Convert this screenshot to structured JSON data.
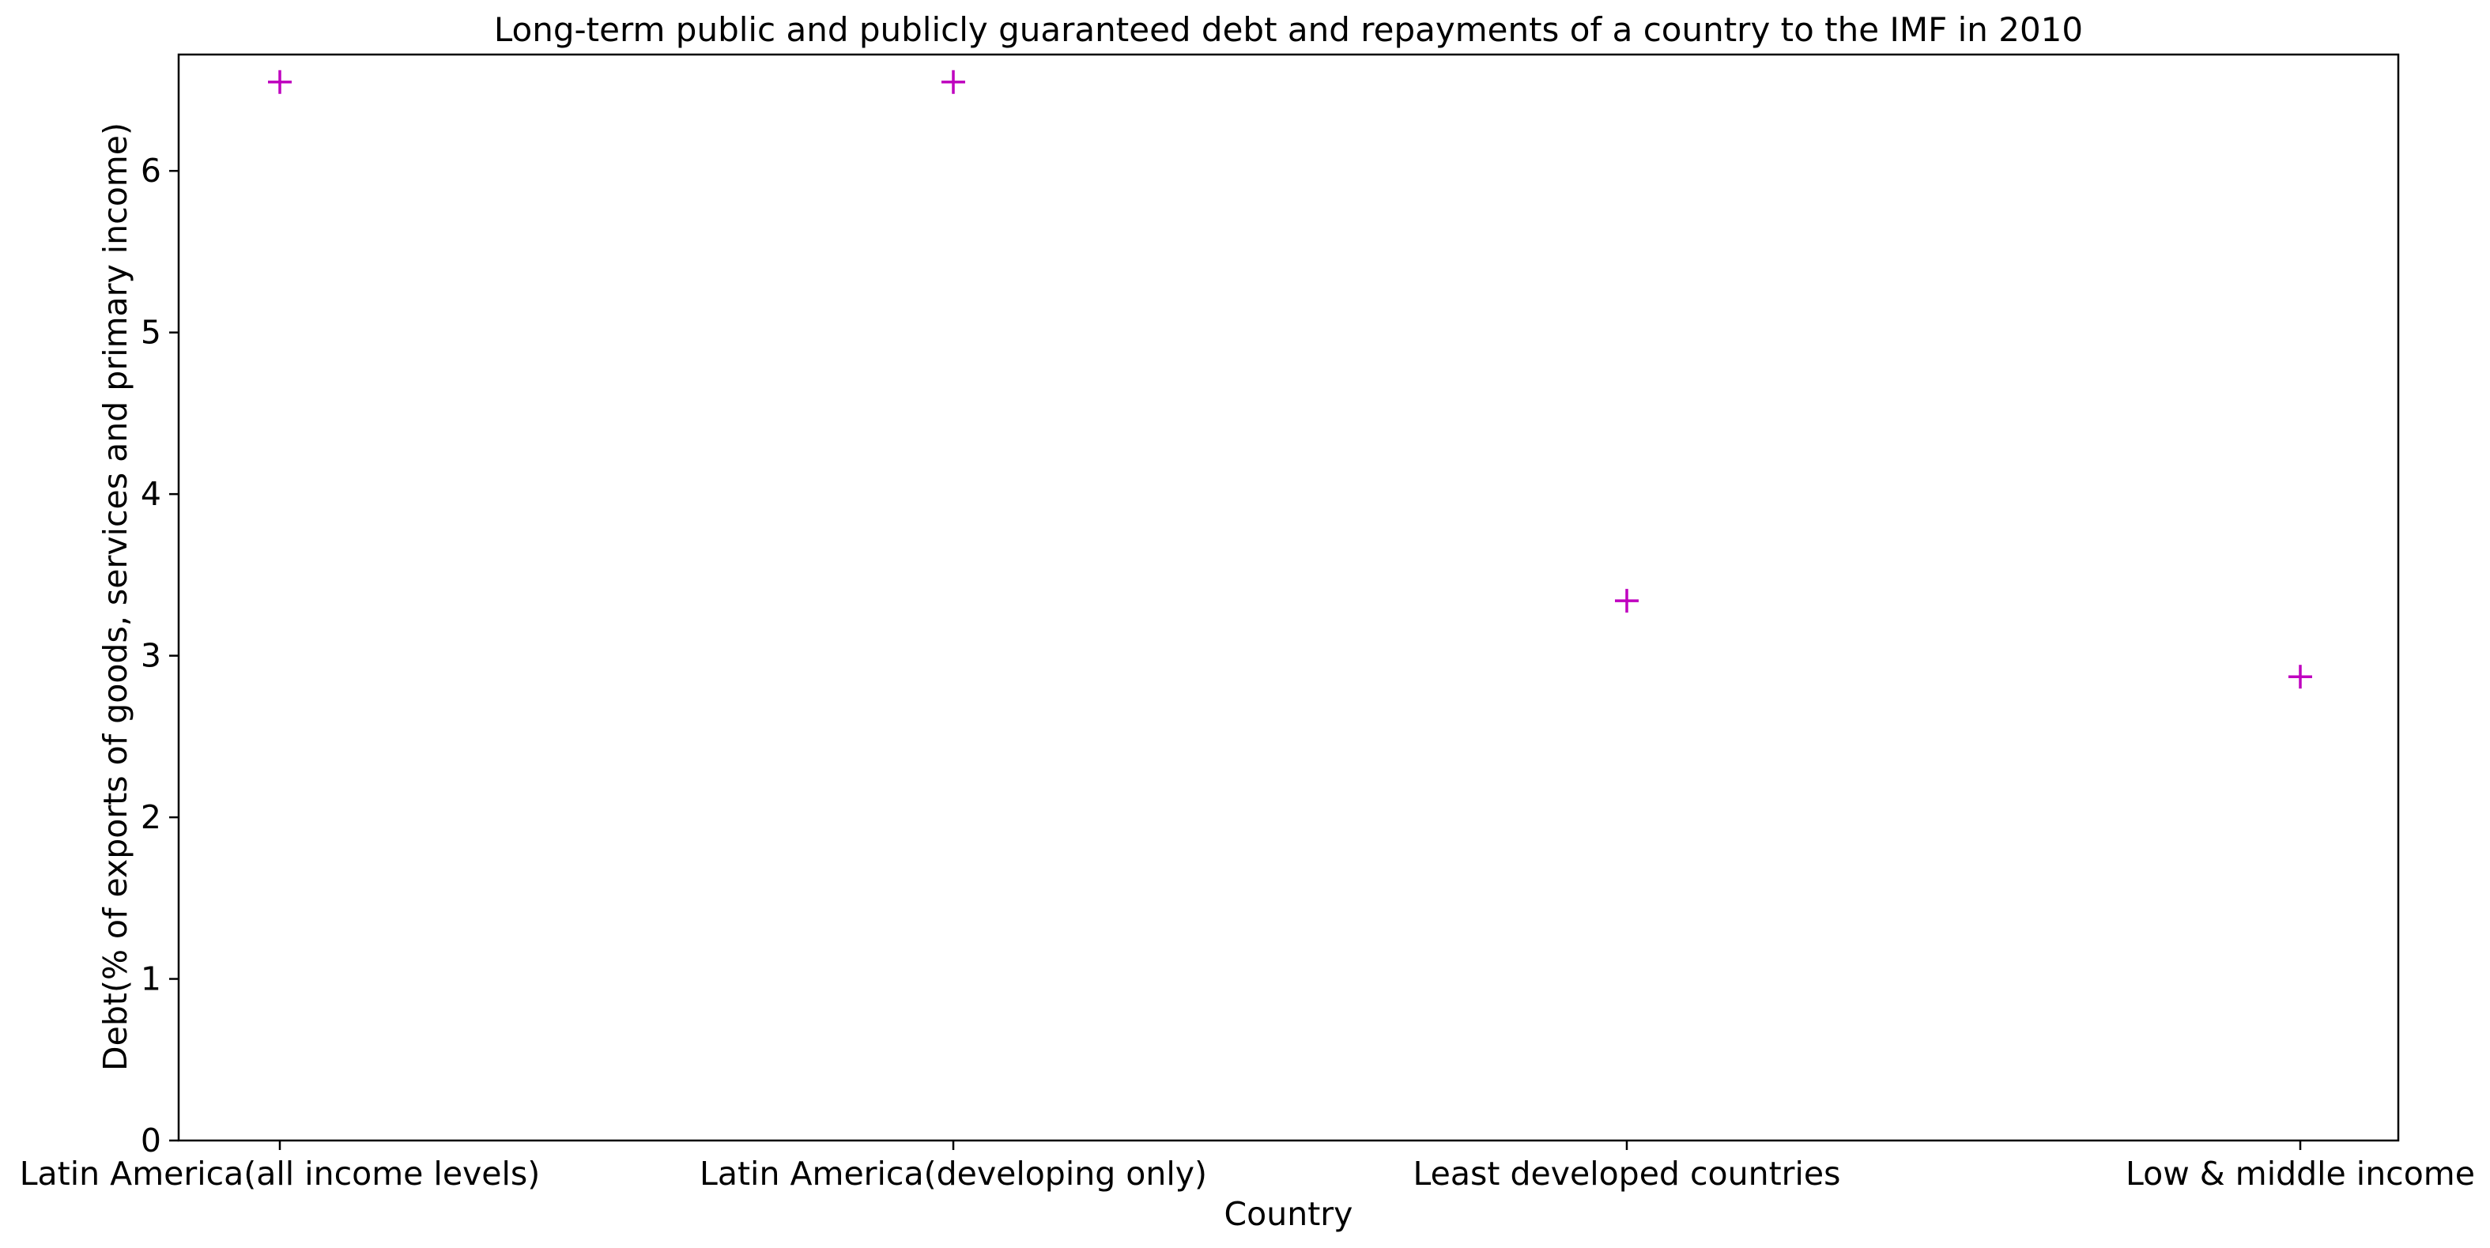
{
  "chart_data": {
    "type": "scatter",
    "title": "Long-term public and publicly guaranteed debt and repayments of a country to the IMF in 2010",
    "xlabel": "Country",
    "ylabel": "Debt(% of exports of goods, services and primary income)",
    "categories": [
      "Latin America(all income levels)",
      "Latin America(developing only)",
      "Least developed countries",
      "Low & middle income"
    ],
    "values": [
      6.55,
      6.55,
      3.34,
      2.87
    ],
    "ylim": [
      0,
      6.72
    ],
    "yticks": [
      0,
      1,
      2,
      3,
      4,
      5,
      6
    ],
    "grid": false,
    "marker": "plus",
    "color": "#bf00bf"
  }
}
